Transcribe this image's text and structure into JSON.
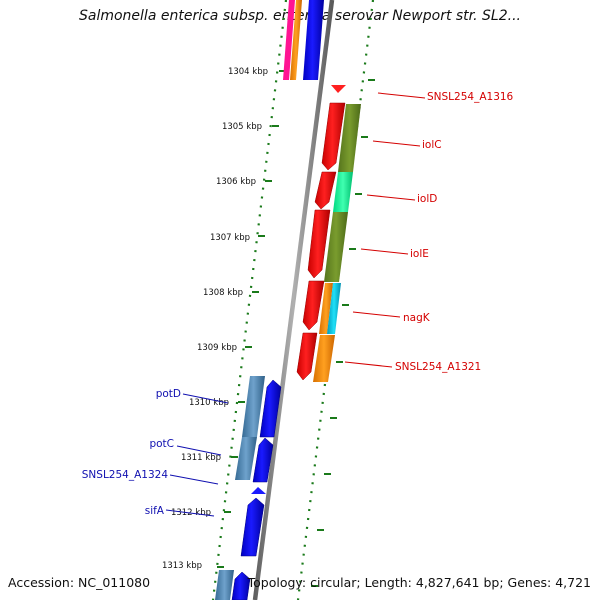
{
  "title": "Salmonella enterica subsp. enterica serovar Newport str. SL2...",
  "footer": {
    "accession": "Accession: NC_011080",
    "summary": "Topology: circular; Length: 4,827,641 bp; Genes: 4,721"
  },
  "ruler": [
    {
      "label": "1304 kbp"
    },
    {
      "label": "1305 kbp"
    },
    {
      "label": "1306 kbp"
    },
    {
      "label": "1307 kbp"
    },
    {
      "label": "1308 kbp"
    },
    {
      "label": "1309 kbp"
    },
    {
      "label": "1310 kbp"
    },
    {
      "label": "1311 kbp"
    },
    {
      "label": "1312 kbp"
    },
    {
      "label": "1313 kbp"
    }
  ],
  "genes_right": [
    {
      "label": "SNSL254_A1316"
    },
    {
      "label": "iolC"
    },
    {
      "label": "iolD"
    },
    {
      "label": "iolE"
    },
    {
      "label": "nagK"
    },
    {
      "label": "SNSL254_A1321"
    }
  ],
  "genes_left": [
    {
      "label": "potD"
    },
    {
      "label": "potC"
    },
    {
      "label": "SNSL254_A1324"
    },
    {
      "label": "sifA"
    }
  ],
  "colors": {
    "forward_gene": "#ff0000",
    "reverse_gene": "#0000ff",
    "backbone": "#808080",
    "ruler_ticks": "#1a7a1a",
    "olive": "#6b8e23",
    "spring_green": "#00ff99",
    "cyan": "#00c8e0",
    "orange": "#ff8c00",
    "steel_blue": "#4682b4",
    "magenta": "#ff1493"
  }
}
